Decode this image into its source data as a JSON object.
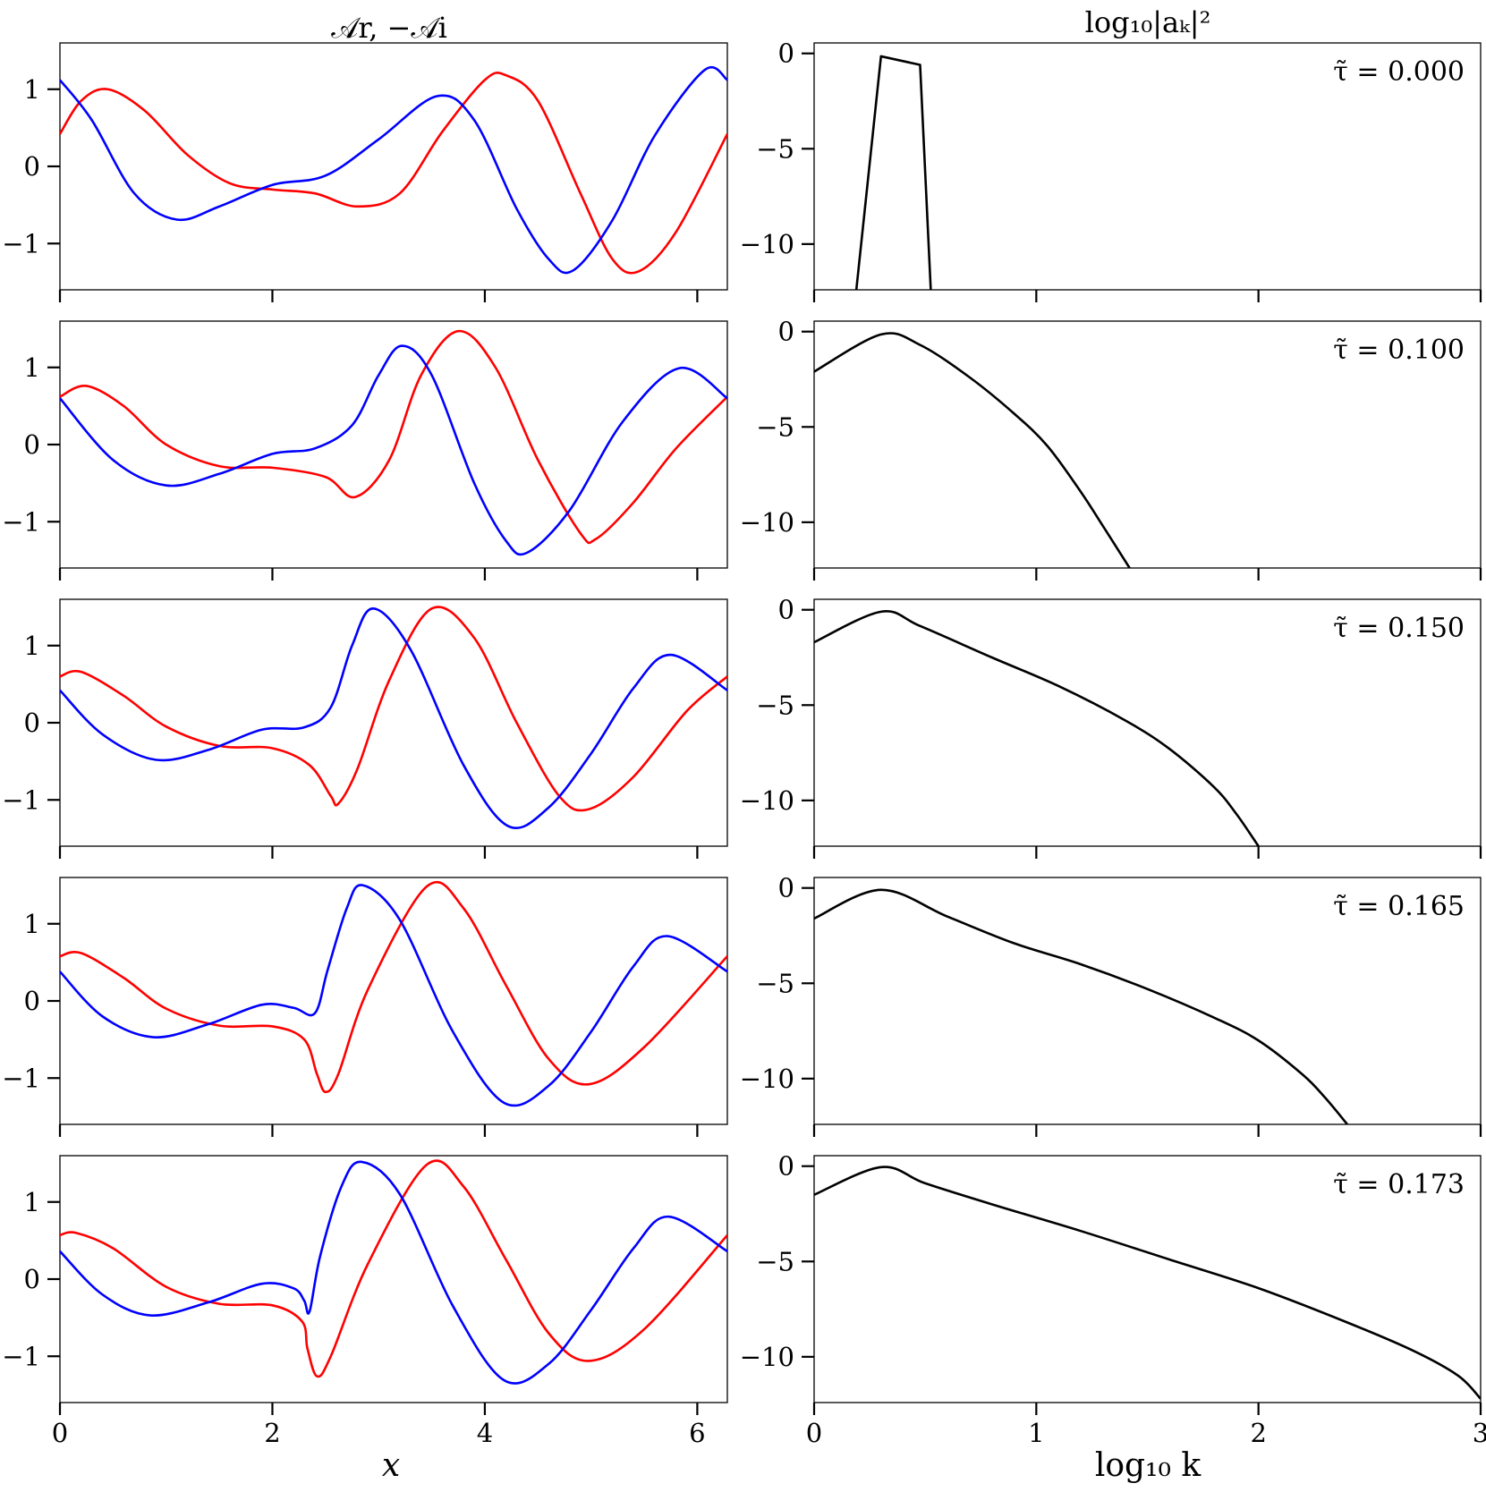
{
  "titles": {
    "left": "𝒜r,  −𝒜i",
    "right": "log₁₀|aₖ|²"
  },
  "axis_labels": {
    "left_x": "x",
    "right_x": "log₁₀ k"
  },
  "colors": {
    "real": "#ff0000",
    "imag": "#0000ff",
    "spectrum": "#000000"
  },
  "chart_data": [
    {
      "type": "line",
      "panel": "waveforms",
      "title": "𝒜r,  −𝒜i",
      "xlabel": "x",
      "ylabel": "",
      "xlim": [
        0,
        6.283
      ],
      "ylim": [
        -1.6,
        1.6
      ],
      "xticks": [
        0,
        2,
        4,
        6
      ],
      "xtick_labels": [
        "0",
        "2",
        "4",
        "6"
      ],
      "yticks": [
        1,
        0,
        -1
      ],
      "ytick_labels": [
        "1",
        "0",
        "−1"
      ],
      "rows": [
        {
          "series": [
            {
              "color": "red",
              "x": [
                0,
                0.2,
                0.45,
                0.8,
                1.2,
                1.6,
                2.0,
                2.4,
                2.8,
                3.2,
                3.6,
                4.0,
                4.2,
                4.5,
                4.9,
                5.2,
                5.45,
                5.8,
                6.283
              ],
              "y": [
                0.42,
                0.85,
                1.0,
                0.72,
                0.15,
                -0.22,
                -0.3,
                -0.35,
                -0.52,
                -0.35,
                0.45,
                1.12,
                1.18,
                0.85,
                -0.35,
                -1.2,
                -1.36,
                -0.85,
                0.42
              ]
            },
            {
              "color": "blue",
              "x": [
                0,
                0.3,
                0.7,
                1.1,
                1.5,
                2.0,
                2.5,
                3.0,
                3.55,
                3.9,
                4.3,
                4.6,
                4.83,
                5.2,
                5.6,
                6.07,
                6.283
              ],
              "y": [
                1.12,
                0.6,
                -0.35,
                -0.69,
                -0.52,
                -0.24,
                -0.12,
                0.35,
                0.91,
                0.6,
                -0.55,
                -1.2,
                -1.35,
                -0.7,
                0.4,
                1.25,
                1.12
              ]
            }
          ]
        },
        {
          "series": [
            {
              "color": "red",
              "x": [
                0,
                0.25,
                0.6,
                1.0,
                1.5,
                2.0,
                2.5,
                2.78,
                3.1,
                3.4,
                3.75,
                4.1,
                4.5,
                4.9,
                5.05,
                5.4,
                5.8,
                6.283
              ],
              "y": [
                0.62,
                0.76,
                0.5,
                0.0,
                -0.28,
                -0.3,
                -0.42,
                -0.68,
                -0.2,
                0.9,
                1.47,
                1.0,
                -0.2,
                -1.15,
                -1.22,
                -0.75,
                -0.05,
                0.62
              ]
            },
            {
              "color": "blue",
              "x": [
                0,
                0.5,
                1.0,
                1.5,
                2.0,
                2.4,
                2.75,
                3.0,
                3.22,
                3.5,
                3.9,
                4.2,
                4.4,
                4.8,
                5.3,
                5.83,
                6.283
              ],
              "y": [
                0.6,
                -0.2,
                -0.53,
                -0.38,
                -0.12,
                -0.05,
                0.25,
                0.9,
                1.28,
                0.9,
                -0.5,
                -1.25,
                -1.4,
                -0.85,
                0.3,
                0.99,
                0.6
              ]
            }
          ]
        },
        {
          "series": [
            {
              "color": "red",
              "x": [
                0,
                0.2,
                0.6,
                1.0,
                1.5,
                2.0,
                2.35,
                2.55,
                2.62,
                2.8,
                3.1,
                3.5,
                3.9,
                4.3,
                4.7,
                4.98,
                5.4,
                5.9,
                6.283
              ],
              "y": [
                0.6,
                0.66,
                0.35,
                -0.05,
                -0.3,
                -0.33,
                -0.55,
                -0.95,
                -1.05,
                -0.6,
                0.55,
                1.48,
                1.1,
                0.0,
                -0.95,
                -1.12,
                -0.7,
                0.15,
                0.6
              ]
            },
            {
              "color": "blue",
              "x": [
                0,
                0.4,
                0.9,
                1.4,
                1.9,
                2.3,
                2.55,
                2.75,
                2.95,
                3.3,
                3.8,
                4.22,
                4.6,
                5.0,
                5.4,
                5.75,
                6.283
              ],
              "y": [
                0.42,
                -0.15,
                -0.48,
                -0.35,
                -0.09,
                -0.06,
                0.2,
                1.0,
                1.48,
                0.95,
                -0.55,
                -1.34,
                -1.1,
                -0.4,
                0.45,
                0.88,
                0.42
              ]
            }
          ]
        },
        {
          "series": [
            {
              "color": "red",
              "x": [
                0,
                0.2,
                0.6,
                1.0,
                1.5,
                2.0,
                2.3,
                2.42,
                2.5,
                2.62,
                2.9,
                3.45,
                3.8,
                4.2,
                4.6,
                4.98,
                5.5,
                6.283
              ],
              "y": [
                0.58,
                0.62,
                0.3,
                -0.1,
                -0.32,
                -0.33,
                -0.5,
                -0.95,
                -1.18,
                -0.95,
                0.15,
                1.48,
                1.2,
                0.2,
                -0.75,
                -1.08,
                -0.6,
                0.58
              ]
            },
            {
              "color": "blue",
              "x": [
                0,
                0.4,
                0.88,
                1.4,
                1.9,
                2.2,
                2.4,
                2.52,
                2.7,
                2.85,
                3.2,
                3.7,
                4.18,
                4.6,
                5.0,
                5.4,
                5.72,
                6.283
              ],
              "y": [
                0.38,
                -0.2,
                -0.47,
                -0.3,
                -0.05,
                -0.09,
                -0.16,
                0.4,
                1.2,
                1.5,
                1.05,
                -0.4,
                -1.32,
                -1.1,
                -0.4,
                0.45,
                0.84,
                0.38
              ]
            }
          ]
        },
        {
          "series": [
            {
              "color": "red",
              "x": [
                0,
                0.15,
                0.5,
                1.0,
                1.5,
                2.0,
                2.28,
                2.33,
                2.42,
                2.55,
                2.9,
                3.45,
                3.8,
                4.2,
                4.6,
                4.98,
                5.5,
                6.283
              ],
              "y": [
                0.57,
                0.6,
                0.4,
                -0.1,
                -0.32,
                -0.34,
                -0.55,
                -0.9,
                -1.26,
                -1.0,
                0.2,
                1.48,
                1.2,
                0.25,
                -0.7,
                -1.06,
                -0.65,
                0.57
              ]
            },
            {
              "color": "blue",
              "x": [
                0,
                0.4,
                0.85,
                1.4,
                1.9,
                2.2,
                2.3,
                2.35,
                2.45,
                2.65,
                2.84,
                3.2,
                3.7,
                4.18,
                4.6,
                5.0,
                5.4,
                5.73,
                6.283
              ],
              "y": [
                0.36,
                -0.2,
                -0.47,
                -0.3,
                -0.06,
                -0.12,
                -0.28,
                -0.42,
                0.3,
                1.2,
                1.52,
                1.1,
                -0.35,
                -1.31,
                -1.1,
                -0.4,
                0.4,
                0.81,
                0.36
              ]
            }
          ]
        }
      ]
    },
    {
      "type": "line",
      "panel": "spectra",
      "title": "log₁₀|aₖ|²",
      "xlabel": "log₁₀ k",
      "ylabel": "",
      "xlim": [
        0,
        3
      ],
      "ylim": [
        -12.4,
        0.55
      ],
      "xticks": [
        0,
        1,
        2,
        3
      ],
      "xtick_labels": [
        "0",
        "1",
        "2",
        "3"
      ],
      "yticks": [
        0,
        -5,
        -10
      ],
      "ytick_labels": [
        "0",
        "−5",
        "−10"
      ],
      "rows": [
        {
          "label": "τ̃ = 0.000",
          "x": [
            0.19,
            0.301,
            0.477,
            0.525
          ],
          "y": [
            -12.4,
            -0.15,
            -0.6,
            -12.4
          ]
        },
        {
          "label": "τ̃ = 0.100",
          "x": [
            0,
            0.301,
            0.477,
            0.7,
            0.9,
            1.05,
            1.2,
            1.3,
            1.42
          ],
          "y": [
            -2.1,
            -0.15,
            -0.7,
            -2.4,
            -4.3,
            -6.0,
            -8.4,
            -10.2,
            -12.4
          ]
        },
        {
          "label": "τ̃ = 0.150",
          "x": [
            0,
            0.301,
            0.477,
            0.8,
            1.1,
            1.4,
            1.6,
            1.8,
            1.9,
            2.0
          ],
          "y": [
            -1.7,
            -0.1,
            -0.85,
            -2.5,
            -4.0,
            -5.8,
            -7.3,
            -9.3,
            -10.7,
            -12.4
          ]
        },
        {
          "label": "τ̃ = 0.165",
          "x": [
            0,
            0.301,
            0.6,
            0.9,
            1.2,
            1.5,
            1.8,
            2.0,
            2.2,
            2.3,
            2.4
          ],
          "y": [
            -1.6,
            -0.1,
            -1.5,
            -2.9,
            -4.0,
            -5.3,
            -6.8,
            -8.0,
            -9.8,
            -11.0,
            -12.4
          ]
        },
        {
          "label": "τ̃ = 0.173",
          "x": [
            0,
            0.301,
            0.5,
            0.8,
            1.2,
            1.6,
            2.0,
            2.4,
            2.7,
            2.9,
            3.0
          ],
          "y": [
            -1.5,
            -0.05,
            -0.9,
            -2.0,
            -3.4,
            -4.9,
            -6.4,
            -8.2,
            -9.7,
            -11.0,
            -12.2
          ]
        }
      ]
    }
  ]
}
